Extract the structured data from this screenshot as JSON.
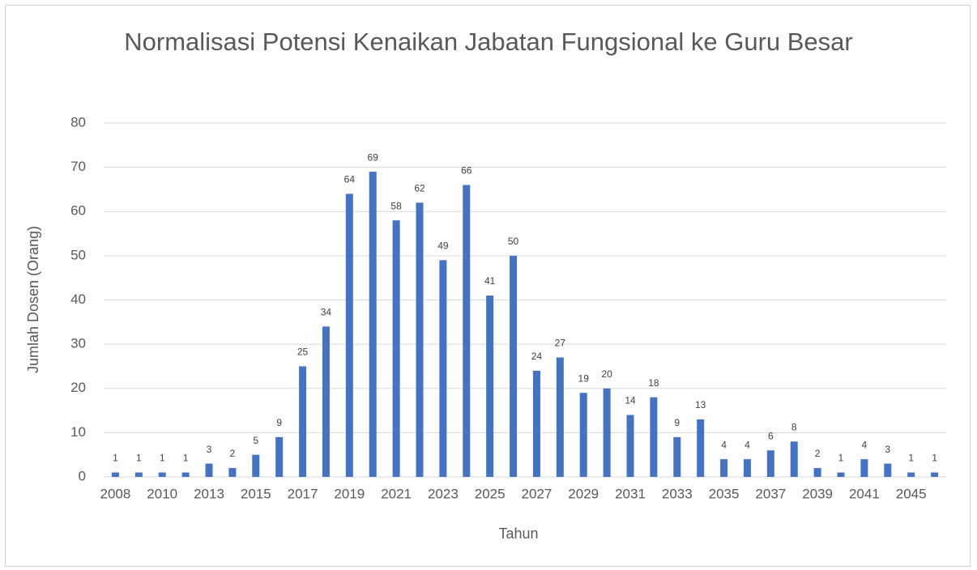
{
  "chart_data": {
    "type": "bar",
    "title": "Normalisasi Potensi Kenaikan Jabatan Fungsional ke Guru Besar",
    "x_label": "Tahun",
    "y_label": "Jumlah Dosen (Orang)",
    "categories": [
      "2008",
      null,
      "2010",
      null,
      "2013",
      null,
      "2015",
      null,
      "2017",
      null,
      "2019",
      null,
      "2021",
      null,
      "2023",
      null,
      "2025",
      null,
      "2027",
      null,
      "2029",
      null,
      "2031",
      null,
      "2033",
      null,
      "2035",
      null,
      "2037",
      null,
      "2039",
      null,
      "2041",
      null,
      "2045",
      null
    ],
    "values": [
      1,
      1,
      1,
      1,
      3,
      2,
      5,
      9,
      25,
      34,
      64,
      69,
      58,
      62,
      49,
      66,
      41,
      50,
      24,
      27,
      19,
      20,
      14,
      18,
      9,
      13,
      4,
      4,
      6,
      8,
      2,
      1,
      4,
      3,
      1,
      1
    ],
    "color": "#4472c4",
    "ylim": [
      0,
      80
    ],
    "yticks": [
      0,
      10,
      20,
      30,
      40,
      50,
      60,
      70,
      80
    ],
    "grid": true
  }
}
